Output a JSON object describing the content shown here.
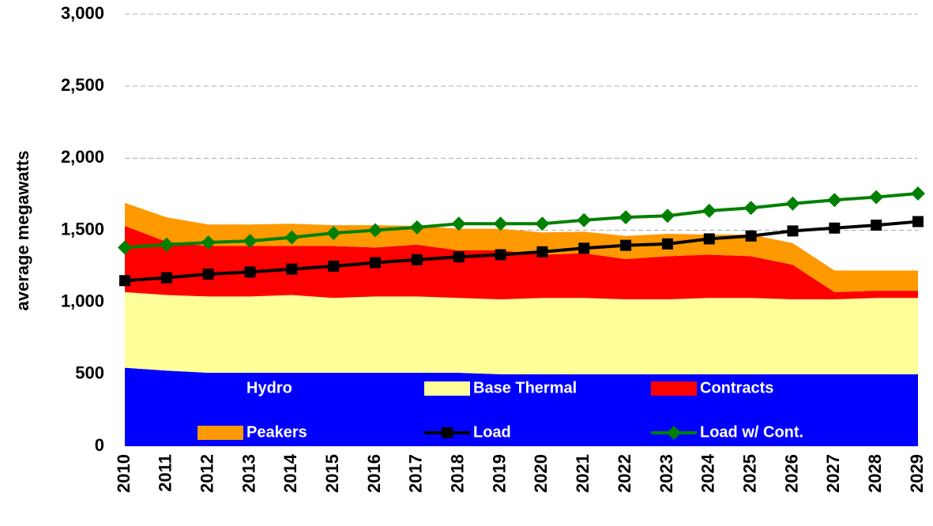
{
  "chart_data": {
    "type": "area",
    "y_label": "average megawatts",
    "categories": [
      "2010",
      "2011",
      "2012",
      "2013",
      "2014",
      "2015",
      "2016",
      "2017",
      "2018",
      "2019",
      "2020",
      "2021",
      "2022",
      "2023",
      "2024",
      "2025",
      "2026",
      "2027",
      "2028",
      "2029"
    ],
    "ylim": [
      0,
      3000
    ],
    "yticks": [
      0,
      500,
      {
        "value": 1000,
        "label": "1,000"
      },
      {
        "value": 1500,
        "label": "1,500"
      },
      {
        "value": 2000,
        "label": "2,000"
      },
      {
        "value": 2500,
        "label": "2,500"
      },
      {
        "value": 3000,
        "label": "3,000"
      }
    ],
    "grid": true,
    "legend": "bottom",
    "series": [
      {
        "name": "Hydro",
        "type": "area",
        "color": "#0000ff",
        "values": [
          545,
          525,
          510,
          510,
          510,
          510,
          510,
          510,
          510,
          500,
          500,
          500,
          500,
          500,
          500,
          500,
          500,
          500,
          500,
          500
        ]
      },
      {
        "name": "Base Thermal",
        "type": "area",
        "color": "#ffff99",
        "values": [
          525,
          525,
          530,
          530,
          540,
          520,
          530,
          530,
          520,
          520,
          530,
          530,
          520,
          520,
          530,
          530,
          520,
          520,
          530,
          530
        ]
      },
      {
        "name": "Contracts",
        "type": "area",
        "color": "#ff0000",
        "values": [
          460,
          370,
          350,
          350,
          340,
          360,
          340,
          360,
          330,
          340,
          300,
          310,
          280,
          300,
          300,
          290,
          240,
          50,
          50,
          50
        ]
      },
      {
        "name": "Peakers",
        "type": "area",
        "color": "#ff9900",
        "values": [
          160,
          170,
          150,
          150,
          155,
          145,
          155,
          130,
          150,
          150,
          155,
          150,
          160,
          155,
          140,
          150,
          150,
          150,
          140,
          140
        ]
      },
      {
        "name": "Load",
        "type": "line",
        "marker": "square",
        "color": "#000000",
        "values": [
          1150,
          1170,
          1195,
          1210,
          1230,
          1250,
          1275,
          1295,
          1315,
          1330,
          1350,
          1375,
          1395,
          1405,
          1440,
          1460,
          1495,
          1515,
          1535,
          1560
        ]
      },
      {
        "name": "Load w/ Cont.",
        "type": "line",
        "marker": "diamond",
        "color": "#008000",
        "values": [
          1380,
          1400,
          1415,
          1425,
          1450,
          1480,
          1500,
          1520,
          1545,
          1545,
          1545,
          1570,
          1590,
          1600,
          1635,
          1655,
          1685,
          1710,
          1730,
          1755
        ]
      }
    ]
  }
}
